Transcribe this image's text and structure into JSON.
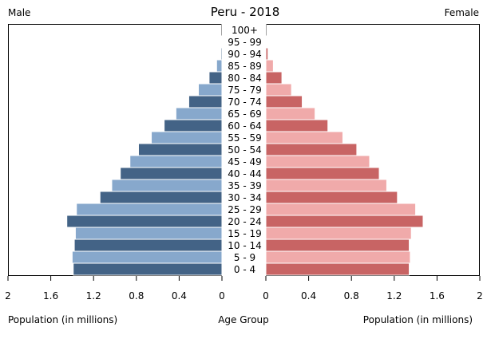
{
  "chart_data": {
    "type": "bar",
    "title": "Peru - 2018",
    "left_title": "Male",
    "right_title": "Female",
    "xlabel_left": "Population (in millions)",
    "xlabel_center": "Age Group",
    "xlabel_right": "Population (in millions)",
    "xlim": [
      0,
      2
    ],
    "xticks": [
      "0",
      "0.4",
      "0.8",
      "1.2",
      "1.6",
      "2"
    ],
    "categories": [
      "0 - 4",
      "5 - 9",
      "10 - 14",
      "15 - 19",
      "20 - 24",
      "25 - 29",
      "30 - 34",
      "35 - 39",
      "40 - 44",
      "45 - 49",
      "50 - 54",
      "55 - 59",
      "60 - 64",
      "65 - 69",
      "70 - 74",
      "75 - 79",
      "80 - 84",
      "85 - 89",
      "90 - 94",
      "95 - 99",
      "100+"
    ],
    "series": [
      {
        "name": "Male",
        "values": [
          1.39,
          1.4,
          1.38,
          1.37,
          1.45,
          1.36,
          1.14,
          1.03,
          0.95,
          0.86,
          0.78,
          0.66,
          0.54,
          0.43,
          0.31,
          0.22,
          0.12,
          0.05,
          0.01,
          0.004,
          0.001
        ]
      },
      {
        "name": "Female",
        "values": [
          1.34,
          1.35,
          1.34,
          1.36,
          1.47,
          1.4,
          1.23,
          1.13,
          1.06,
          0.97,
          0.85,
          0.72,
          0.58,
          0.46,
          0.34,
          0.24,
          0.15,
          0.07,
          0.02,
          0.005,
          0.001
        ]
      }
    ],
    "colors": {
      "male_dark": "#436386",
      "male_light": "#87a8cc",
      "female_dark": "#c86464",
      "female_light": "#f0aaaa",
      "separator": "#ffffff"
    },
    "grid": false,
    "legend": "none"
  }
}
